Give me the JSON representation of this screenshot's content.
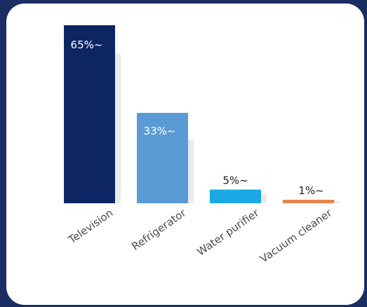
{
  "chart_data": {
    "type": "bar",
    "title": "",
    "xlabel": "",
    "ylabel": "",
    "ylim": [
      0,
      65
    ],
    "grid": false,
    "legend": "none",
    "categories": [
      "Television",
      "Refrigerator",
      "Water purifier",
      "Vacuum cleaner"
    ],
    "values": [
      65,
      33,
      5,
      1
    ],
    "data_labels": [
      "65%~",
      "33%~",
      "5%~",
      "1%~"
    ],
    "colors": [
      "#0d2563",
      "#5b9bd5",
      "#1aa9e6",
      "#e8834a"
    ]
  },
  "colors": {
    "background": "#1b2d63",
    "card": "#ffffff",
    "label_on_bar": "#ffffff",
    "label_text": "#222222",
    "category_text": "#4a4a4a"
  }
}
